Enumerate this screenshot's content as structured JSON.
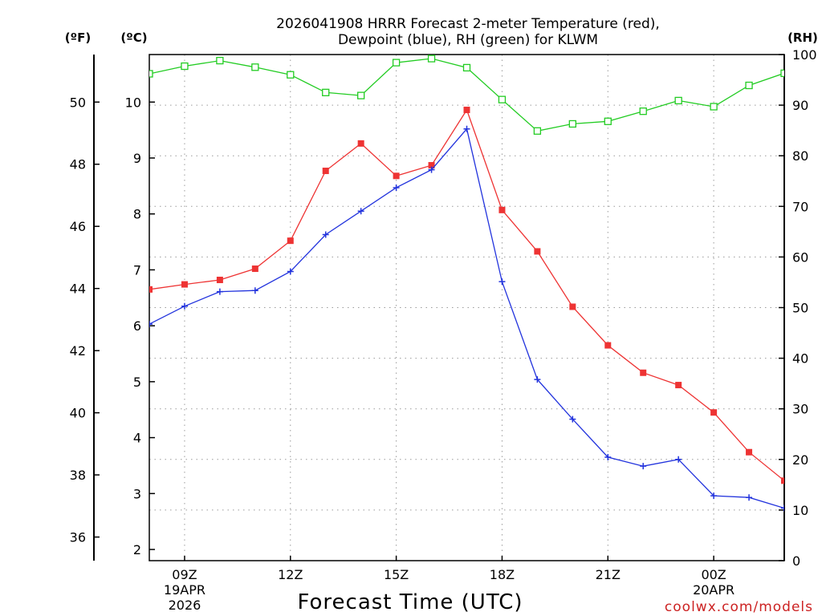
{
  "chart_data": {
    "type": "line",
    "title_line1": "2026041908 HRRR Forecast 2-meter Temperature (red),",
    "title_line2": "Dewpoint (blue), RH (green) for KLWM",
    "xlabel": "Forecast Time (UTC)",
    "credit": "coolwx.com/models",
    "units": {
      "fahrenheit": "(ºF)",
      "celsius": "(ºC)",
      "rh": "(RH)"
    },
    "hour_range": [
      8,
      26
    ],
    "celsius_range": [
      1.8,
      10.85
    ],
    "rh_range": [
      0,
      100
    ],
    "fahrenheit_ticks": [
      "36",
      "38",
      "40",
      "42",
      "44",
      "46",
      "48",
      "50"
    ],
    "celsius_ticks": [
      "2",
      "3",
      "4",
      "5",
      "6",
      "7",
      "8",
      "9",
      "10"
    ],
    "rh_ticks": [
      "0",
      "10",
      "20",
      "30",
      "40",
      "50",
      "60",
      "70",
      "80",
      "90",
      "100"
    ],
    "x_ticks": [
      {
        "hour": 9,
        "label": "09Z",
        "sub1": "19APR",
        "sub2": "2026"
      },
      {
        "hour": 12,
        "label": "12Z",
        "sub1": "",
        "sub2": ""
      },
      {
        "hour": 15,
        "label": "15Z",
        "sub1": "",
        "sub2": ""
      },
      {
        "hour": 18,
        "label": "18Z",
        "sub1": "",
        "sub2": ""
      },
      {
        "hour": 21,
        "label": "21Z",
        "sub1": "",
        "sub2": ""
      },
      {
        "hour": 24,
        "label": "00Z",
        "sub1": "20APR",
        "sub2": ""
      }
    ],
    "hours": [
      8,
      9,
      10,
      11,
      12,
      13,
      14,
      15,
      16,
      17,
      18,
      19,
      20,
      21,
      22,
      23,
      24,
      25,
      26
    ],
    "series": [
      {
        "name": "Temperature (°C)",
        "color": "#ee3333",
        "marker": "filled-square",
        "axis": "celsius",
        "values": [
          6.65,
          6.74,
          6.82,
          7.02,
          7.52,
          8.77,
          9.26,
          8.68,
          8.87,
          9.86,
          8.07,
          7.33,
          6.34,
          5.65,
          5.16,
          4.94,
          4.45,
          3.74,
          3.23
        ]
      },
      {
        "name": "Dewpoint (°C)",
        "color": "#2233dd",
        "marker": "plus",
        "axis": "celsius",
        "values": [
          6.03,
          6.35,
          6.61,
          6.63,
          6.97,
          7.63,
          8.05,
          8.47,
          8.79,
          9.52,
          6.79,
          5.04,
          4.33,
          3.65,
          3.49,
          3.61,
          2.96,
          2.93,
          2.74
        ]
      },
      {
        "name": "RH (%)",
        "color": "#22cc22",
        "marker": "open-square",
        "axis": "rh",
        "values": [
          96.2,
          97.7,
          98.8,
          97.5,
          96.0,
          92.5,
          91.9,
          98.4,
          99.2,
          97.4,
          91.1,
          84.9,
          86.3,
          86.8,
          88.8,
          90.9,
          89.7,
          93.9,
          96.3
        ]
      }
    ]
  }
}
